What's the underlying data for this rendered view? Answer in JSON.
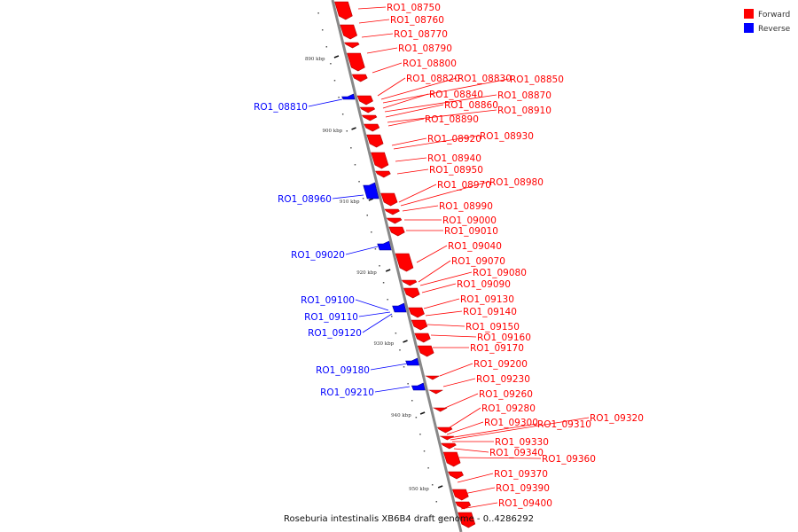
{
  "legend": {
    "forward_label": "Forward",
    "reverse_label": "Reverse",
    "forward_color": "#ff0000",
    "reverse_color": "#0000ff"
  },
  "caption": "Roseburia intestinalis XB6B4 draft genome - 0..4286292",
  "backbone_color": "#888888",
  "ticks": [
    "890 kbp",
    "900 kbp",
    "910 kbp",
    "920 kbp",
    "930 kbp",
    "940 kbp",
    "950 kbp"
  ],
  "forward_genes": [
    "RO1_08750",
    "RO1_08760",
    "RO1_08770",
    "RO1_08790",
    "RO1_08800",
    "RO1_08820",
    "RO1_08830",
    "RO1_08850",
    "RO1_08840",
    "RO1_08870",
    "RO1_08860",
    "RO1_08910",
    "RO1_08890",
    "RO1_08920",
    "RO1_08930",
    "RO1_08940",
    "RO1_08950",
    "RO1_08970",
    "RO1_08980",
    "RO1_08990",
    "RO1_09000",
    "RO1_09010",
    "RO1_09040",
    "RO1_09070",
    "RO1_09080",
    "RO1_09090",
    "RO1_09130",
    "RO1_09140",
    "RO1_09150",
    "RO1_09160",
    "RO1_09170",
    "RO1_09200",
    "RO1_09230",
    "RO1_09260",
    "RO1_09280",
    "RO1_09300",
    "RO1_09310",
    "RO1_09320",
    "RO1_09330",
    "RO1_09340",
    "RO1_09360",
    "RO1_09370",
    "RO1_09390",
    "RO1_09400"
  ],
  "reverse_genes": [
    "RO1_08810",
    "RO1_08960",
    "RO1_09020",
    "RO1_09100",
    "RO1_09110",
    "RO1_09120",
    "RO1_09180",
    "RO1_09210"
  ]
}
